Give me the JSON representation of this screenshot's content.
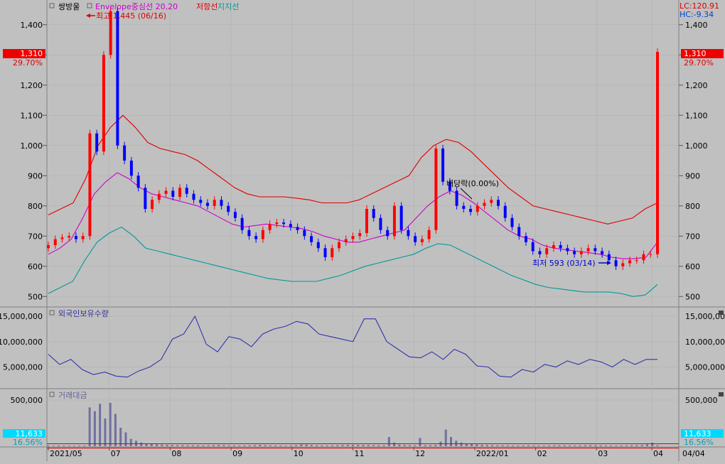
{
  "legend": {
    "stock": "쌍방울",
    "envelope": "Envelope중심선 20,20",
    "resistance": "저항선",
    "support": "지지선"
  },
  "corner": {
    "lc": "LC:120.91",
    "hc": "HC:-9.34"
  },
  "price_badge": {
    "value": "1,310",
    "pct": "29.70%"
  },
  "volume_badge": {
    "value": "11,633",
    "pct": "16.56%"
  },
  "annotations": {
    "high": "최고 1,445 (06/16)",
    "low": "최저 593 (03/14)",
    "dividend": "배당락(0.00%)"
  },
  "panels": {
    "foreign": "외국인보유수량",
    "turnover": "거래대금"
  },
  "x_labels": [
    "2021/05",
    "07",
    "08",
    "09",
    "10",
    "11",
    "12",
    "2022/01",
    "02",
    "03",
    "04"
  ],
  "x_right_label": "04/04",
  "colors": {
    "up": "#ff0000",
    "down": "#0000ff",
    "envelope_mid": "#cc00cc",
    "resistance": "#dd0000",
    "support": "#009999",
    "foreign": "#3333aa",
    "turnover": "#7070a0",
    "badge_red": "#ee0000",
    "badge_cyan": "#00d8ff"
  },
  "chart_data": [
    {
      "type": "candlestick",
      "ylim": [
        470,
        1470
      ],
      "yticks": [
        500,
        600,
        700,
        800,
        900,
        1000,
        1100,
        1200,
        1300,
        1400
      ],
      "ytick_labels": [
        "500",
        "600",
        "700",
        "800",
        "900",
        "1,000",
        "1,100",
        "1,200",
        "1,300",
        "1,400"
      ],
      "x_dates": [
        "2021/05",
        "07",
        "08",
        "09",
        "10",
        "11",
        "12",
        "2022/01",
        "02",
        "03",
        "04"
      ],
      "close_series": [
        670,
        690,
        695,
        700,
        690,
        700,
        1040,
        980,
        1300,
        1445,
        1000,
        950,
        900,
        860,
        790,
        820,
        840,
        850,
        830,
        860,
        840,
        820,
        810,
        800,
        820,
        800,
        780,
        760,
        720,
        700,
        690,
        720,
        740,
        745,
        740,
        730,
        720,
        700,
        680,
        660,
        630,
        660,
        680,
        690,
        700,
        710,
        790,
        760,
        720,
        700,
        800,
        720,
        700,
        680,
        690,
        720,
        990,
        880,
        850,
        800,
        790,
        780,
        800,
        810,
        820,
        800,
        760,
        730,
        700,
        680,
        650,
        640,
        660,
        670,
        660,
        650,
        640,
        650,
        660,
        650,
        640,
        620,
        600,
        610,
        620,
        620,
        640,
        640,
        1310
      ],
      "envelope_mid": [
        640,
        660,
        690,
        760,
        840,
        880,
        910,
        890,
        860,
        840,
        830,
        820,
        810,
        800,
        780,
        760,
        740,
        730,
        735,
        740,
        735,
        730,
        725,
        715,
        700,
        690,
        680,
        680,
        690,
        700,
        710,
        720,
        760,
        800,
        830,
        850,
        835,
        810,
        780,
        750,
        720,
        700,
        690,
        670,
        660,
        655,
        650,
        645,
        640,
        630,
        625,
        625,
        630,
        680
      ],
      "resistance": [
        770,
        790,
        810,
        890,
        1000,
        1060,
        1100,
        1060,
        1010,
        990,
        980,
        970,
        950,
        920,
        890,
        860,
        840,
        830,
        830,
        830,
        825,
        820,
        810,
        810,
        810,
        820,
        840,
        860,
        880,
        900,
        960,
        1000,
        1020,
        1010,
        980,
        940,
        900,
        860,
        830,
        800,
        790,
        780,
        770,
        760,
        750,
        740,
        750,
        760,
        790,
        810
      ],
      "support": [
        510,
        530,
        550,
        620,
        680,
        710,
        730,
        700,
        660,
        650,
        640,
        630,
        620,
        610,
        600,
        590,
        580,
        570,
        560,
        555,
        550,
        550,
        550,
        560,
        570,
        585,
        600,
        610,
        620,
        630,
        640,
        660,
        675,
        670,
        650,
        630,
        610,
        590,
        570,
        555,
        540,
        530,
        525,
        520,
        515,
        515,
        515,
        510,
        500,
        505,
        540
      ]
    },
    {
      "type": "line",
      "name": "외국인보유수량",
      "ylim": [
        1000000,
        16000000
      ],
      "yticks": [
        5000000,
        10000000,
        15000000
      ],
      "ytick_labels": [
        "5,000,000",
        "10,000,000",
        "15,000,000"
      ],
      "values": [
        7500000,
        5500000,
        6500000,
        4500000,
        3500000,
        4000000,
        3200000,
        3000000,
        4200000,
        5000000,
        6500000,
        10500000,
        11500000,
        15000000,
        9500000,
        8000000,
        11000000,
        10500000,
        9000000,
        11500000,
        12500000,
        13000000,
        14000000,
        13500000,
        11500000,
        11000000,
        10500000,
        10000000,
        14500000,
        14500000,
        10000000,
        8500000,
        7000000,
        6800000,
        8000000,
        6500000,
        8500000,
        7500000,
        5200000,
        5000000,
        3200000,
        3000000,
        4500000,
        4000000,
        5500000,
        5000000,
        6200000,
        5500000,
        6500000,
        6000000,
        5000000,
        6500000,
        5500000,
        6500000,
        6500000
      ],
      "dates_note": "2021/05 → 2022/04"
    },
    {
      "type": "bar",
      "name": "거래대금",
      "ylim": [
        0,
        600000
      ],
      "yticks": [
        500000
      ],
      "ytick_labels": [
        "500,000"
      ],
      "values": [
        8000,
        6000,
        9000,
        7000,
        6000,
        5000,
        7000,
        8000,
        420000,
        380000,
        460000,
        300000,
        470000,
        350000,
        200000,
        150000,
        80000,
        60000,
        40000,
        30000,
        25000,
        20000,
        18000,
        15000,
        14000,
        12000,
        12000,
        11000,
        10000,
        10000,
        9000,
        9000,
        12000,
        14000,
        12000,
        10000,
        9000,
        8000,
        9000,
        10000,
        12000,
        15000,
        12000,
        10000,
        9000,
        8000,
        7000,
        9000,
        12000,
        20000,
        18000,
        14000,
        12000,
        10000,
        9000,
        10000,
        12000,
        14000,
        15000,
        16000,
        15000,
        14000,
        13000,
        12000,
        11000,
        10000,
        100000,
        40000,
        18000,
        14000,
        12000,
        10000,
        90000,
        12000,
        12000,
        14000,
        50000,
        180000,
        100000,
        60000,
        40000,
        30000,
        25000,
        20000,
        16000,
        14000,
        12000,
        11000,
        10000,
        9000,
        8000,
        8000,
        9000,
        10000,
        9000,
        8000,
        8000,
        9000,
        10000,
        11000,
        10000,
        9000,
        9000,
        10000,
        11000,
        12000,
        11000,
        10000,
        9000,
        8000,
        8000,
        9000,
        10000,
        11000,
        12000,
        14000,
        20000,
        40000,
        11633
      ]
    }
  ]
}
